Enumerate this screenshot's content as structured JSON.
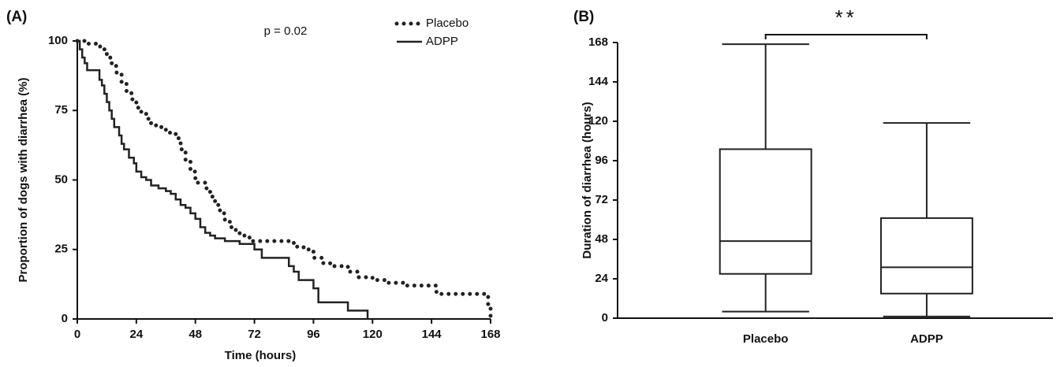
{
  "chart_data": [
    {
      "type": "step",
      "panel_label": "(A)",
      "annotation": "p = 0.02",
      "x_label": "Time (hours)",
      "y_label": "Proportion of dogs with diarrhea (%)",
      "xlim": [
        0,
        168
      ],
      "xticks": [
        0,
        24,
        48,
        72,
        96,
        120,
        144,
        168
      ],
      "ylim": [
        0,
        100
      ],
      "yticks": [
        0,
        25,
        50,
        75,
        100
      ],
      "series": [
        {
          "name": "Placebo",
          "style": "dotted",
          "color": "#222222",
          "x": [
            0,
            4,
            8,
            11,
            12,
            14,
            16,
            18,
            20,
            22,
            24,
            26,
            28,
            30,
            32,
            36,
            40,
            42,
            44,
            46,
            48,
            52,
            54,
            56,
            58,
            60,
            62,
            64,
            66,
            70,
            86,
            88,
            92,
            96,
            100,
            104,
            110,
            114,
            120,
            126,
            134,
            146,
            166,
            167,
            168
          ],
          "values": [
            100,
            99,
            98,
            97,
            94,
            91,
            88,
            85,
            82,
            79,
            76,
            74,
            72,
            70,
            69,
            67,
            65,
            61,
            57,
            53,
            49,
            47,
            44,
            41,
            38,
            35,
            33,
            32,
            30,
            28,
            28,
            26,
            25,
            22,
            20,
            19,
            17,
            15,
            14,
            13,
            12,
            9,
            9,
            5,
            0
          ]
        },
        {
          "name": "ADPP",
          "style": "solid",
          "color": "#222222",
          "x": [
            0,
            1,
            2,
            3,
            4,
            9,
            10,
            11,
            12,
            13,
            14,
            15,
            17,
            18,
            19,
            21,
            23,
            24,
            26,
            28,
            30,
            33,
            36,
            38,
            40,
            42,
            44,
            46,
            48,
            50,
            52,
            54,
            56,
            60,
            66,
            72,
            75,
            86,
            88,
            90,
            96,
            98,
            110,
            118
          ],
          "values": [
            100,
            97,
            94,
            92,
            89.5,
            86,
            84,
            81,
            78,
            75,
            72,
            69,
            66,
            63,
            61,
            58,
            56,
            53,
            51,
            50,
            48,
            47,
            46,
            45,
            43,
            41,
            40,
            38,
            36,
            33,
            31,
            30,
            29,
            28,
            27,
            25,
            22,
            19,
            17,
            14,
            11,
            6,
            3,
            0
          ]
        }
      ]
    },
    {
      "type": "box",
      "panel_label": "(B)",
      "annotation": "**",
      "y_label": "Duration of diarrhea (hours)",
      "categories": [
        "Placebo",
        "ADPP"
      ],
      "ylim": [
        0,
        168
      ],
      "yticks": [
        0,
        24,
        48,
        72,
        96,
        120,
        144,
        168
      ],
      "color": "#222222",
      "whisker_low": [
        4,
        1
      ],
      "q1": [
        27,
        15
      ],
      "median": [
        47,
        31
      ],
      "q3": [
        103,
        61
      ],
      "whisker_high": [
        167,
        119
      ]
    }
  ]
}
